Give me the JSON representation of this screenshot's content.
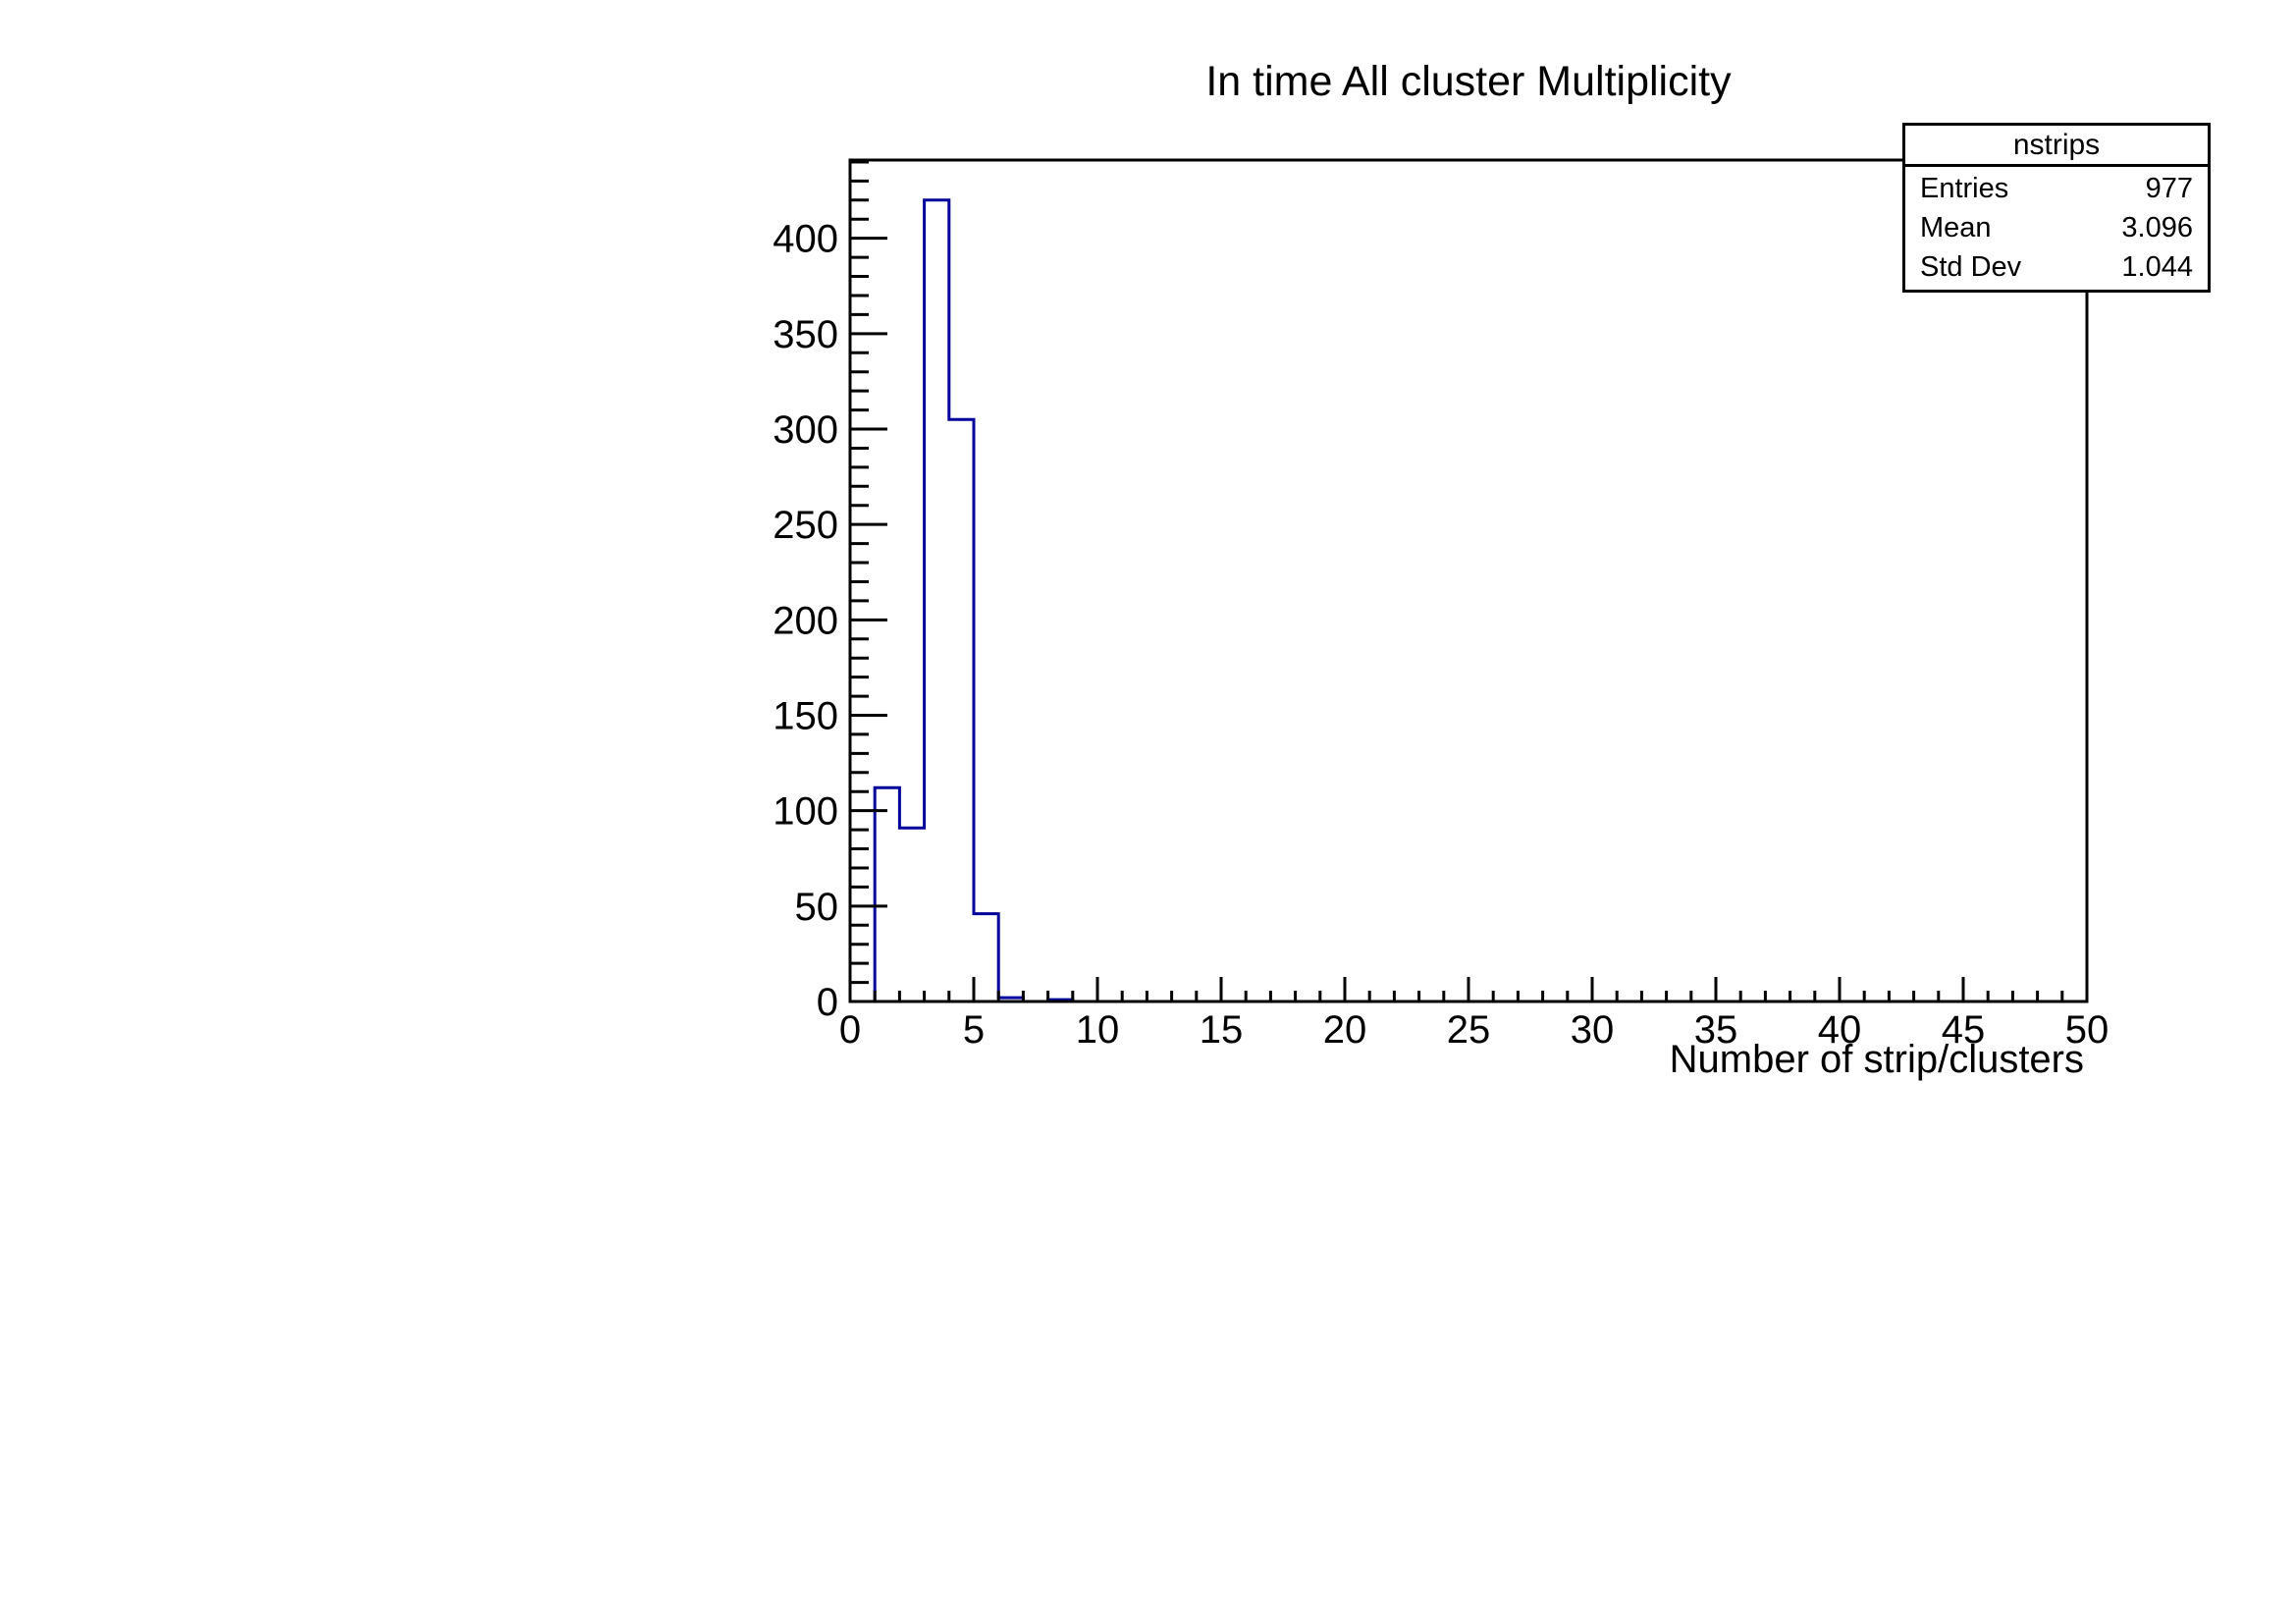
{
  "title": "In time All cluster Multiplicity",
  "stats_box": {
    "title": "nstrips",
    "rows": [
      {
        "label": "Entries",
        "value": "977"
      },
      {
        "label": "Mean",
        "value": "3.096"
      },
      {
        "label": "Std Dev",
        "value": "1.044"
      }
    ]
  },
  "x_axis": {
    "title": "Number of strip/clusters",
    "range": [
      0,
      50
    ],
    "major_tick_step": 5,
    "minor_tick_step": 1,
    "major_tick_labels": [
      "0",
      "5",
      "10",
      "15",
      "20",
      "25",
      "30",
      "35",
      "40",
      "45",
      "50"
    ]
  },
  "y_axis": {
    "title": "",
    "range": [
      0,
      441
    ],
    "major_tick_step": 50,
    "minor_tick_step": 10,
    "major_tick_labels": [
      "0",
      "50",
      "100",
      "150",
      "200",
      "250",
      "300",
      "350",
      "400"
    ]
  },
  "colors": {
    "histogram_line": "#00009a",
    "axis_line": "#000000",
    "text": "#000000",
    "background": "#ffffff"
  },
  "chart_data": {
    "type": "bar",
    "subtype": "step-histogram",
    "title": "In time All cluster Multiplicity",
    "xlabel": "Number of strip/clusters",
    "ylabel": "",
    "xlim": [
      0,
      50
    ],
    "ylim": [
      0,
      441
    ],
    "grid": false,
    "legend": false,
    "bin_width": 1,
    "bins": [
      {
        "x_low": 1,
        "x_high": 2,
        "count": 112
      },
      {
        "x_low": 2,
        "x_high": 3,
        "count": 91
      },
      {
        "x_low": 3,
        "x_high": 4,
        "count": 420
      },
      {
        "x_low": 4,
        "x_high": 5,
        "count": 305
      },
      {
        "x_low": 5,
        "x_high": 6,
        "count": 46
      },
      {
        "x_low": 6,
        "x_high": 7,
        "count": 2
      },
      {
        "x_low": 7,
        "x_high": 8,
        "count": 0
      },
      {
        "x_low": 8,
        "x_high": 9,
        "count": 1
      }
    ],
    "stats": {
      "name": "nstrips",
      "entries": 977,
      "mean": 3.096,
      "std_dev": 1.044
    }
  }
}
